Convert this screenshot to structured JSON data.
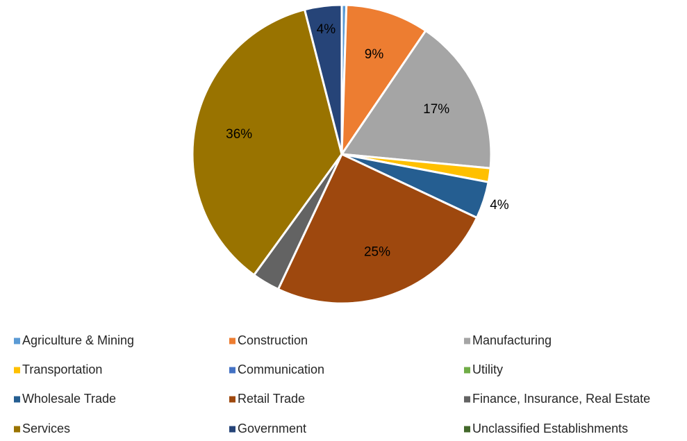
{
  "chart_data": {
    "type": "pie",
    "categories": [
      "Agriculture & Mining",
      "Construction",
      "Manufacturing",
      "Transportation",
      "Communication",
      "Utility",
      "Wholesale Trade",
      "Retail Trade",
      "Finance, Insurance, Real Estate",
      "Services",
      "Government",
      "Unclassified Establishments"
    ],
    "values": [
      0.5,
      9,
      17,
      1.5,
      0,
      0,
      4,
      25,
      3,
      36,
      4,
      0
    ],
    "value_labels": [
      null,
      "9%",
      "17%",
      null,
      null,
      null,
      "4%",
      "25%",
      null,
      "36%",
      "4%",
      null
    ],
    "colors": [
      "#5b9bd5",
      "#ed7d31",
      "#a5a5a5",
      "#ffc000",
      "#4472c4",
      "#70ad47",
      "#255e91",
      "#9e480e",
      "#636363",
      "#997300",
      "#264478",
      "#43682b"
    ],
    "legend": "bottom"
  }
}
